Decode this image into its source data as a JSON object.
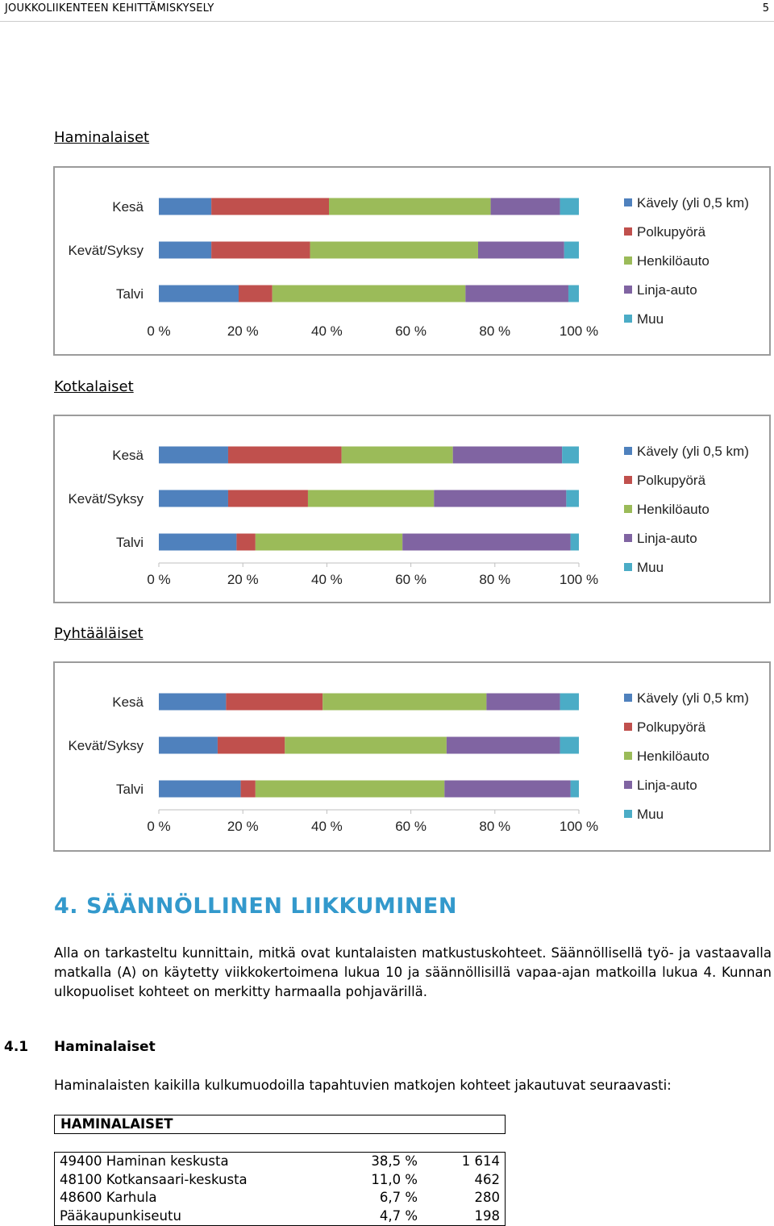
{
  "page_header": {
    "title": "JOUKKOLIIKENTEEN KEHITTÄMISKYSELY",
    "page_number": "5"
  },
  "chart_data": [
    {
      "type": "bar",
      "orientation": "horizontal-stacked-100",
      "title": "Haminalaiset",
      "categories": [
        "Kesä",
        "Kevät/Syksy",
        "Talvi"
      ],
      "series": [
        {
          "name": "Kävely (yli 0,5 km)",
          "values": [
            12.5,
            12.5,
            19
          ]
        },
        {
          "name": "Polkupyörä",
          "values": [
            28,
            23.5,
            8
          ]
        },
        {
          "name": "Henkilöauto",
          "values": [
            38.5,
            40,
            46
          ]
        },
        {
          "name": "Linja-auto",
          "values": [
            16.5,
            20.5,
            24.5
          ]
        },
        {
          "name": "Muu",
          "values": [
            4.5,
            3.5,
            2.5
          ]
        }
      ],
      "xticks": [
        "0 %",
        "20 %",
        "40 %",
        "60 %",
        "80 %",
        "100 %"
      ],
      "xlim": [
        0,
        100
      ],
      "legend": "right",
      "show_axis_line": false
    },
    {
      "type": "bar",
      "orientation": "horizontal-stacked-100",
      "title": "Kotkalaiset",
      "categories": [
        "Kesä",
        "Kevät/Syksy",
        "Talvi"
      ],
      "series": [
        {
          "name": "Kävely (yli 0,5 km)",
          "values": [
            16.5,
            16.5,
            18.5
          ]
        },
        {
          "name": "Polkupyörä",
          "values": [
            27,
            19,
            4.5
          ]
        },
        {
          "name": "Henkilöauto",
          "values": [
            26.5,
            30,
            35
          ]
        },
        {
          "name": "Linja-auto",
          "values": [
            26,
            31.5,
            40
          ]
        },
        {
          "name": "Muu",
          "values": [
            4,
            3,
            2
          ]
        }
      ],
      "xticks": [
        "0 %",
        "20 %",
        "40 %",
        "60 %",
        "80 %",
        "100 %"
      ],
      "xlim": [
        0,
        100
      ],
      "legend": "right",
      "show_axis_line": true
    },
    {
      "type": "bar",
      "orientation": "horizontal-stacked-100",
      "title": "Pyhtääläiset",
      "categories": [
        "Kesä",
        "Kevät/Syksy",
        "Talvi"
      ],
      "series": [
        {
          "name": "Kävely (yli 0,5 km)",
          "values": [
            16,
            14,
            19.5
          ]
        },
        {
          "name": "Polkupyörä",
          "values": [
            23,
            16,
            3.5
          ]
        },
        {
          "name": "Henkilöauto",
          "values": [
            39,
            38.5,
            45
          ]
        },
        {
          "name": "Linja-auto",
          "values": [
            17.5,
            27,
            30
          ]
        },
        {
          "name": "Muu",
          "values": [
            4.5,
            4.5,
            2
          ]
        }
      ],
      "xticks": [
        "0 %",
        "20 %",
        "40 %",
        "60 %",
        "80 %",
        "100 %"
      ],
      "xlim": [
        0,
        100
      ],
      "legend": "right",
      "show_axis_line": true
    }
  ],
  "colors": {
    "Kävely (yli 0,5 km)": "#4f81bd",
    "Polkupyörä": "#c0504d",
    "Henkilöauto": "#9bbb59",
    "Linja-auto": "#8064a2",
    "Muu": "#4bacc6",
    "heading": "#3399cc"
  },
  "section4": {
    "heading": "4. SÄÄNNÖLLINEN LIIKKUMINEN",
    "paragraph": "Alla on tarkasteltu kunnittain, mitkä ovat kuntalaisten matkustuskohteet. Säännöllisellä työ- ja vastaavalla matkalla (A) on käytetty viikkokertoimena lukua 10 ja säännöllisillä vapaa-ajan matkoilla lukua 4. Kunnan ulkopuoliset kohteet on merkitty harmaalla pohjavärillä.",
    "sub_number": "4.1",
    "sub_title": "Haminalaiset",
    "intro": "Haminalaisten kaikilla kulkumuodoilla tapahtuvien matkojen kohteet jakautuvat seuraavasti:",
    "table_title": "HAMINALAISET",
    "table_rows": [
      {
        "place": "49400 Haminan keskusta",
        "pct": "38,5 %",
        "count": "1 614"
      },
      {
        "place": "48100 Kotkansaari-keskusta",
        "pct": "11,0 %",
        "count": "462"
      },
      {
        "place": "48600 Karhula",
        "pct": "6,7 %",
        "count": "280"
      },
      {
        "place": "Pääkaupunkiseutu",
        "pct": "4,7 %",
        "count": "198"
      }
    ]
  }
}
